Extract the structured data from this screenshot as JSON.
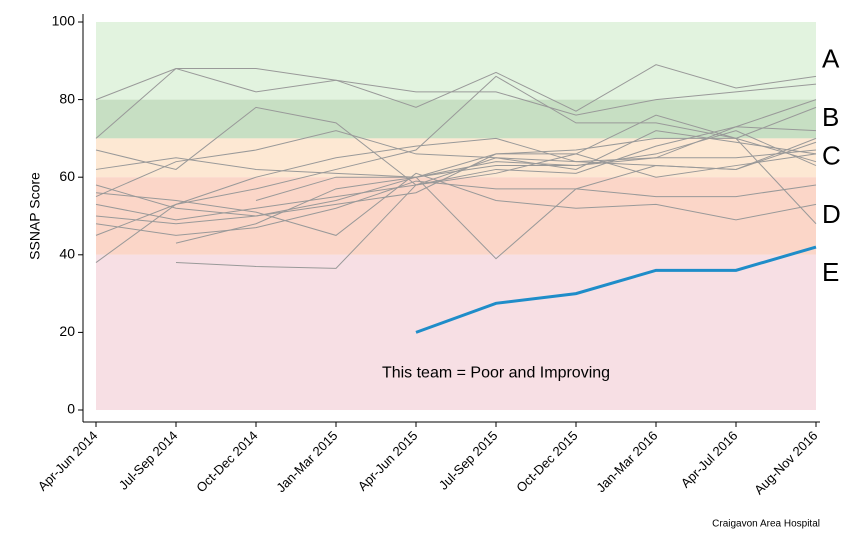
{
  "chart_data": {
    "type": "line",
    "y_label": "SSNAP Score",
    "annotation": "This team = Poor and Improving",
    "footer": "Craigavon Area Hospital",
    "categories": [
      "Apr-Jun 2014",
      "Jul-Sep 2014",
      "Oct-Dec 2014",
      "Jan-Mar 2015",
      "Apr-Jun 2015",
      "Jul-Sep 2015",
      "Oct-Dec 2015",
      "Jan-Mar 2016",
      "Apr-Jul 2016",
      "Aug-Nov 2016"
    ],
    "ylim": [
      0,
      100
    ],
    "yticks": [
      0,
      20,
      40,
      60,
      80,
      100
    ],
    "bands": [
      {
        "label": "A",
        "from": 80,
        "to": 100,
        "color": "#e2f3df",
        "label_color": "#2aa52a"
      },
      {
        "label": "B",
        "from": 70,
        "to": 80,
        "color": "#c7dfc3",
        "label_color": "#1c6b1c"
      },
      {
        "label": "C",
        "from": 60,
        "to": 70,
        "color": "#fde8d3",
        "label_color": "#ff8c1a"
      },
      {
        "label": "D",
        "from": 40,
        "to": 60,
        "color": "#fbd6c8",
        "label_color": "#e8541e"
      },
      {
        "label": "E",
        "from": 0,
        "to": 40,
        "color": "#f7dfe4",
        "label_color": "#c0143c"
      }
    ],
    "series": [
      {
        "color": "#999999",
        "values": [
          80,
          88,
          88,
          85,
          82,
          82,
          76,
          80,
          82,
          84
        ]
      },
      {
        "color": "#999999",
        "values": [
          70,
          88,
          82,
          85,
          78,
          87,
          77,
          89,
          83,
          86
        ]
      },
      {
        "color": "#999999",
        "values": [
          38,
          53,
          57,
          62,
          67,
          86,
          74,
          74,
          70,
          48
        ]
      },
      {
        "color": "#999999",
        "values": [
          45,
          53,
          60,
          65,
          68,
          70,
          64,
          65,
          73,
          80
        ]
      },
      {
        "color": "#999999",
        "values": [
          55,
          64,
          67,
          72,
          66,
          65,
          62,
          72,
          69,
          66
        ]
      },
      {
        "color": "#999999",
        "values": [
          62,
          65,
          62,
          61,
          60,
          63,
          63,
          65,
          65,
          67
        ]
      },
      {
        "color": "#999999",
        "values": [
          58,
          52,
          50,
          54,
          60,
          39,
          57,
          63,
          62,
          70
        ]
      },
      {
        "color": "#999999",
        "values": [
          53,
          49,
          52,
          55,
          58,
          61,
          66,
          76,
          70,
          64
        ]
      },
      {
        "color": "#999999",
        "values": [
          50,
          48,
          50,
          53,
          56,
          66,
          67,
          70,
          70,
          78
        ]
      },
      {
        "color": "#999999",
        "values": [
          48,
          45,
          47,
          52,
          59,
          57,
          57,
          55,
          55,
          58
        ]
      },
      {
        "color": "#999999",
        "values": [
          67,
          62,
          78,
          74,
          58,
          65,
          64,
          63,
          62,
          69
        ]
      },
      {
        "color": "#999999",
        "values": [
          56,
          54,
          51,
          45,
          61,
          54,
          52,
          53,
          49,
          53
        ]
      },
      {
        "color": "#999999",
        "values": [
          null,
          43,
          48,
          57,
          60,
          64,
          63,
          66,
          72,
          63
        ]
      },
      {
        "color": "#999999",
        "values": [
          null,
          null,
          54,
          60,
          60,
          66,
          66,
          60,
          63,
          66
        ]
      },
      {
        "color": "#999999",
        "values": [
          null,
          38,
          37,
          36.5,
          58,
          62,
          61,
          68,
          73,
          72
        ]
      },
      {
        "color": "#1f8dc9",
        "highlight": true,
        "values": [
          null,
          null,
          null,
          null,
          20,
          27.5,
          30,
          36,
          36,
          42
        ]
      }
    ]
  }
}
